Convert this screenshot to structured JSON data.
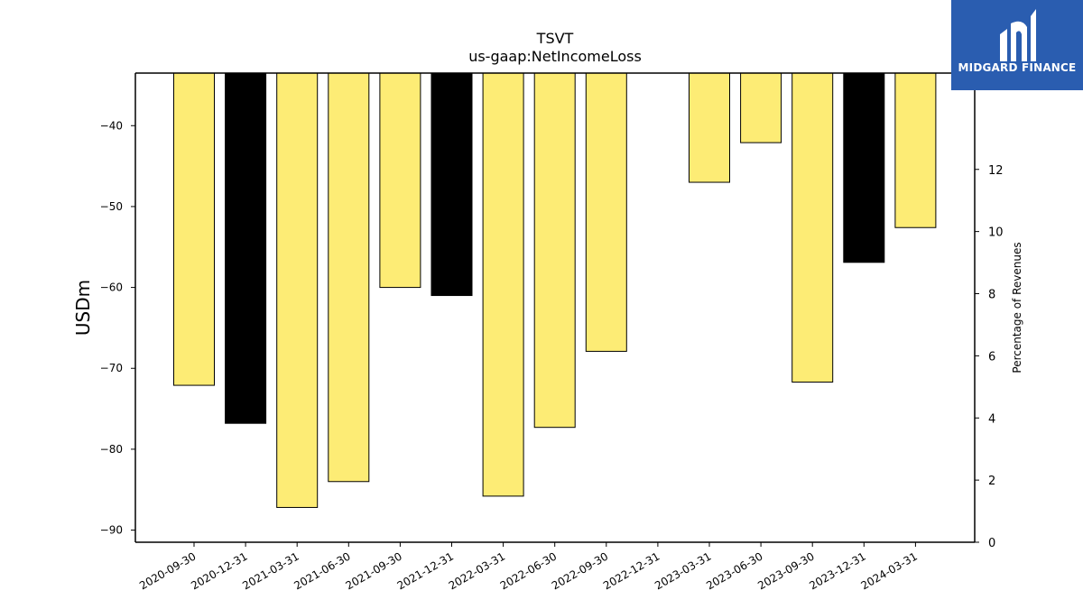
{
  "logo": {
    "text": "MIDGARD FINANCE",
    "color": "#2a5db0"
  },
  "chart_data": {
    "type": "bar",
    "title": "TSVT",
    "subtitle": "us-gaap:NetIncomeLoss",
    "ylabel": "USDm",
    "ylabel_right": "Percentage of Revenues",
    "ylim": [
      -91.5,
      -33.5
    ],
    "ylim_right": [
      0,
      15.1
    ],
    "yticks": [
      -40,
      -50,
      -60,
      -70,
      -80,
      -90
    ],
    "yticks_right": [
      0,
      2,
      4,
      6,
      8,
      10,
      12
    ],
    "categories": [
      "2020-09-30",
      "2020-12-31",
      "2021-03-31",
      "2021-06-30",
      "2021-09-30",
      "2021-12-31",
      "2022-03-31",
      "2022-06-30",
      "2022-09-30",
      "2022-12-31",
      "2023-03-31",
      "2023-06-30",
      "2023-09-30",
      "2023-12-31",
      "2024-03-31"
    ],
    "values": [
      -72.1,
      -76.8,
      -87.2,
      -84.0,
      -60.0,
      -61.0,
      -85.8,
      -77.3,
      -67.9,
      null,
      -47.0,
      -42.1,
      -71.7,
      -56.9,
      -52.6
    ],
    "highlight": [
      false,
      true,
      false,
      false,
      false,
      true,
      false,
      false,
      false,
      false,
      false,
      false,
      false,
      true,
      false
    ],
    "colors": {
      "bar": "#fdec75",
      "highlight": "#000000",
      "edge": "#000000"
    },
    "grid": false
  }
}
